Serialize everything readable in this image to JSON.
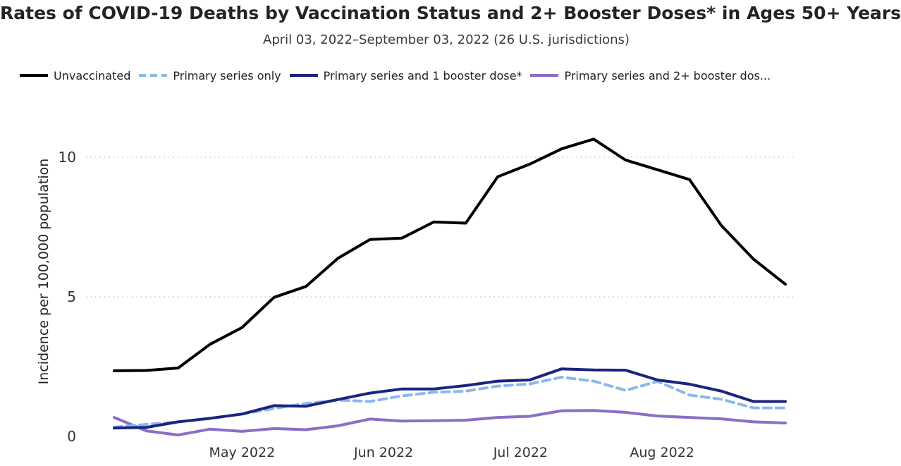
{
  "chart_data": {
    "type": "line",
    "title": "Rates of COVID-19 Deaths by Vaccination Status and 2+ Booster Doses* in Ages 50+ Years",
    "subtitle": "April 03, 2022–September 03, 2022 (26 U.S. jurisdictions)",
    "xlabel": "",
    "ylabel": "Incidence per 100,000 population",
    "ylim": [
      0,
      11
    ],
    "yticks": [
      0,
      5,
      10
    ],
    "grid": "horizontal dotted",
    "legend_position": "top",
    "x": [
      "2022-04-03",
      "2022-04-10",
      "2022-04-17",
      "2022-04-24",
      "2022-05-01",
      "2022-05-08",
      "2022-05-15",
      "2022-05-22",
      "2022-05-29",
      "2022-06-05",
      "2022-06-12",
      "2022-06-19",
      "2022-06-26",
      "2022-07-03",
      "2022-07-10",
      "2022-07-17",
      "2022-07-24",
      "2022-07-31",
      "2022-08-07",
      "2022-08-14",
      "2022-08-21",
      "2022-08-28"
    ],
    "xtick_labels": [
      {
        "date": "2022-05-01",
        "label": "May 2022"
      },
      {
        "date": "2022-06-01",
        "label": "Jun 2022"
      },
      {
        "date": "2022-07-01",
        "label": "Jul 2022"
      },
      {
        "date": "2022-08-01",
        "label": "Aug 2022"
      }
    ],
    "series": [
      {
        "name": "Unvaccinated",
        "color": "#000000",
        "dash": "solid",
        "values": [
          2.35,
          2.36,
          2.45,
          3.3,
          3.9,
          4.98,
          5.37,
          6.38,
          7.05,
          7.1,
          7.68,
          7.64,
          9.3,
          9.75,
          10.3,
          10.65,
          9.9,
          9.55,
          9.2,
          7.55,
          6.35,
          5.45
        ]
      },
      {
        "name": "Primary series only",
        "color": "#8cb8ea",
        "dash": "dashed",
        "values": [
          0.33,
          0.43,
          0.52,
          0.64,
          0.8,
          1.0,
          1.18,
          1.3,
          1.25,
          1.45,
          1.58,
          1.62,
          1.8,
          1.88,
          2.12,
          1.98,
          1.65,
          1.97,
          1.48,
          1.33,
          1.02,
          1.02
        ]
      },
      {
        "name": "Primary series and 1 booster dose*",
        "color": "#1a2480",
        "dash": "solid",
        "values": [
          0.3,
          0.32,
          0.52,
          0.65,
          0.8,
          1.1,
          1.08,
          1.32,
          1.55,
          1.7,
          1.7,
          1.82,
          1.98,
          2.02,
          2.42,
          2.38,
          2.37,
          2.02,
          1.87,
          1.62,
          1.25,
          1.25
        ]
      },
      {
        "name": "Primary series and 2+ booster dos...",
        "color": "#8a6fc6",
        "dash": "solid",
        "values": [
          0.68,
          0.2,
          0.05,
          0.26,
          0.18,
          0.28,
          0.24,
          0.38,
          0.62,
          0.55,
          0.56,
          0.58,
          0.68,
          0.72,
          0.92,
          0.93,
          0.86,
          0.73,
          0.68,
          0.63,
          0.52,
          0.48
        ]
      }
    ]
  }
}
